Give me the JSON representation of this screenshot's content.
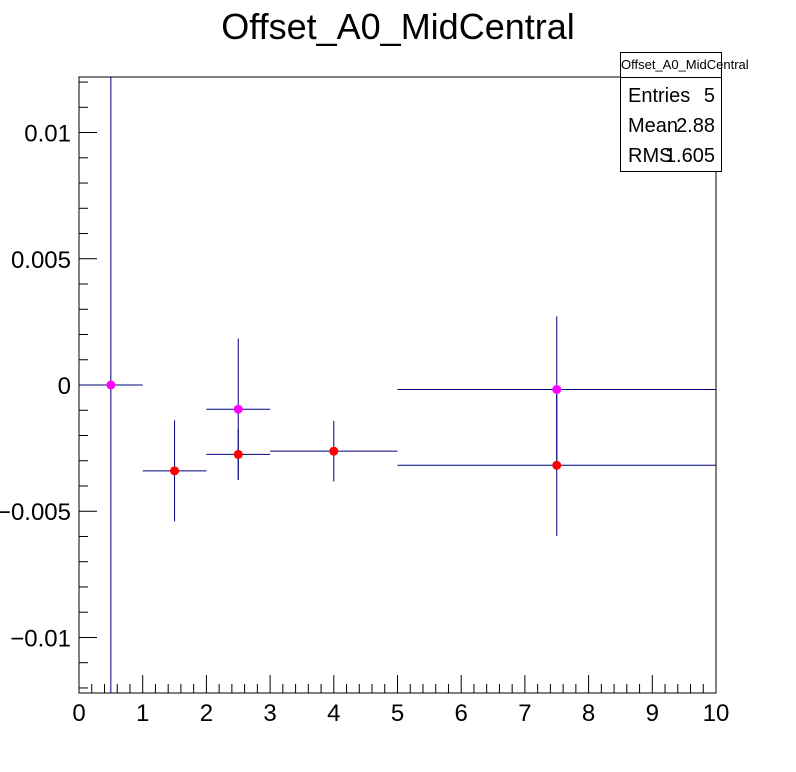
{
  "chart_data": {
    "type": "scatter",
    "title": "Offset_A0_MidCentral",
    "xlabel": "",
    "ylabel": "",
    "xlim": [
      0,
      10
    ],
    "ylim": [
      -0.0122,
      0.0122
    ],
    "x_ticks": [
      0,
      1,
      2,
      3,
      4,
      5,
      6,
      7,
      8,
      9,
      10
    ],
    "x_tick_labels": [
      "0",
      "1",
      "2",
      "3",
      "4",
      "5",
      "6",
      "7",
      "8",
      "9",
      "10"
    ],
    "y_ticks": [
      -0.01,
      -0.005,
      0,
      0.005,
      0.01
    ],
    "y_tick_labels": [
      "−0.01",
      "−0.005",
      "0",
      "0.005",
      "0.01"
    ],
    "grid": false,
    "series": [
      {
        "color": "#ff0000",
        "points": [
          {
            "x": 1.5,
            "y": -0.0034,
            "xerr": 0.5,
            "yerr": 0.002
          },
          {
            "x": 2.5,
            "y": -0.00275,
            "xerr": 0.5,
            "yerr": 0.001
          },
          {
            "x": 4.0,
            "y": -0.00262,
            "xerr": 1.0,
            "yerr": 0.0012
          },
          {
            "x": 7.5,
            "y": -0.00318,
            "xerr": 2.5,
            "yerr": 0.0028
          }
        ]
      },
      {
        "color": "#ff00ff",
        "points": [
          {
            "x": 0.5,
            "y": 0.0,
            "xerr": 0.5,
            "yerr": 0.02
          },
          {
            "x": 2.5,
            "y": -0.00096,
            "xerr": 0.5,
            "yerr": 0.0028
          },
          {
            "x": 7.5,
            "y": -0.00018,
            "xerr": 2.5,
            "yerr": 0.0029
          }
        ]
      }
    ],
    "error_bar_color": "#00007f"
  },
  "stats_box": {
    "title": "Offset_A0_MidCentral",
    "rows": [
      {
        "label": "Entries",
        "value": "5"
      },
      {
        "label": "Mean",
        "value": "2.88"
      },
      {
        "label": "RMS",
        "value": "1.605"
      }
    ]
  }
}
